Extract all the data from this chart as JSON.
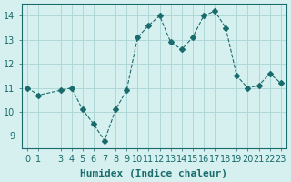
{
  "x": [
    0,
    1,
    3,
    4,
    5,
    6,
    7,
    8,
    9,
    10,
    11,
    12,
    13,
    14,
    15,
    16,
    17,
    18,
    19,
    20,
    21,
    22,
    23
  ],
  "y": [
    11.0,
    10.7,
    10.9,
    11.0,
    10.1,
    9.5,
    8.8,
    10.1,
    10.9,
    13.1,
    13.6,
    14.0,
    12.9,
    12.6,
    13.1,
    14.0,
    14.2,
    13.5,
    11.5,
    11.0,
    11.1,
    11.6,
    11.2
  ],
  "line_color": "#1a6b6b",
  "marker": "D",
  "marker_size": 3,
  "bg_color": "#d6f0f0",
  "grid_color": "#b0d8d8",
  "axis_color": "#1a6b6b",
  "xlabel": "Humidex (Indice chaleur)",
  "xlim": [
    -0.5,
    23.5
  ],
  "ylim": [
    8.5,
    14.5
  ],
  "yticks": [
    9,
    10,
    11,
    12,
    13,
    14
  ],
  "xticks": [
    0,
    1,
    3,
    4,
    5,
    6,
    7,
    8,
    9,
    10,
    11,
    12,
    13,
    14,
    15,
    16,
    17,
    18,
    19,
    20,
    21,
    22,
    23
  ],
  "tick_label_size": 7,
  "xlabel_size": 8,
  "linewidth": 0.8
}
